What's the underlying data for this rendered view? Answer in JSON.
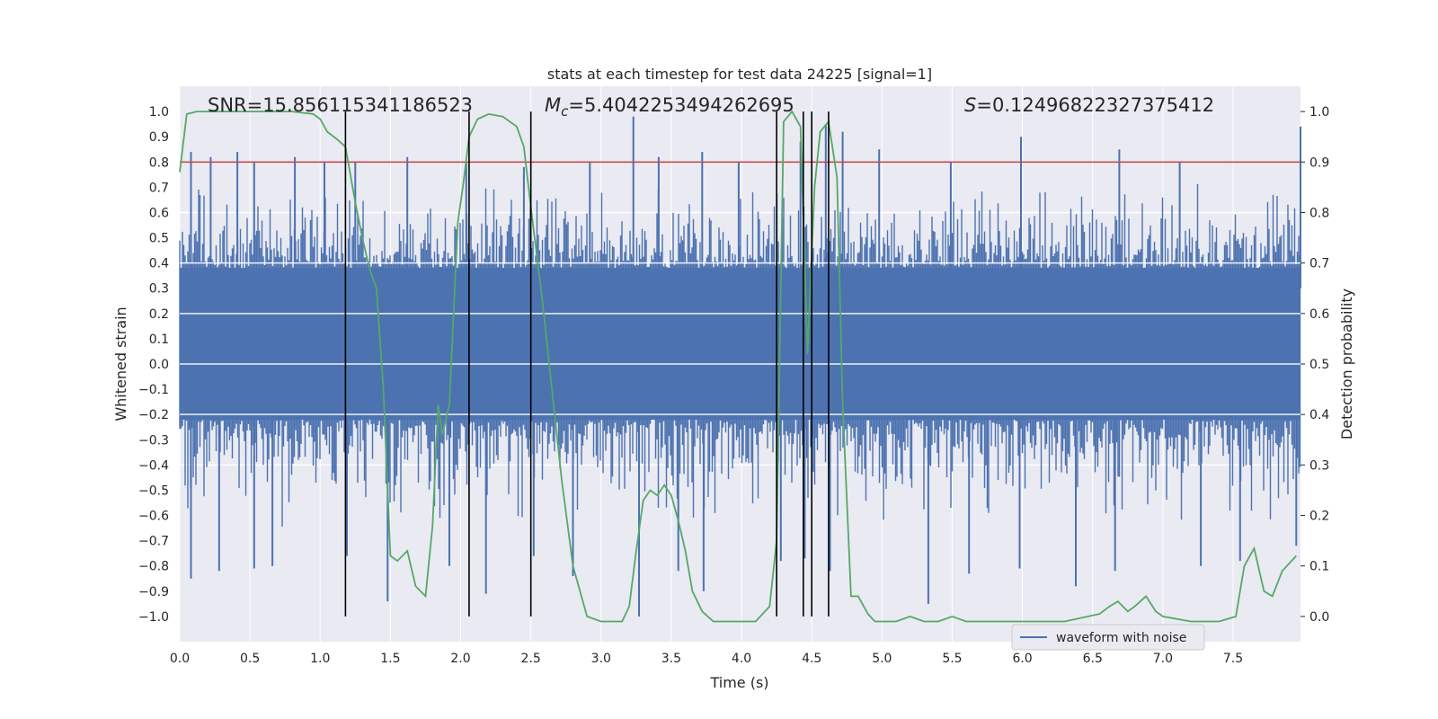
{
  "chart_data": {
    "type": "line",
    "title": "stats at each timestep for test data 24225 [signal=1]",
    "xlabel": "Time (s)",
    "ylabel": "Whitened strain",
    "y2label": "Detection probability",
    "xlim": [
      0.0,
      7.98
    ],
    "ylim": [
      -1.1,
      1.1
    ],
    "y2lim": [
      -0.05,
      1.05
    ],
    "x_ticks": [
      "0.0",
      "0.5",
      "1.0",
      "1.5",
      "2.0",
      "2.5",
      "3.0",
      "3.5",
      "4.0",
      "4.5",
      "5.0",
      "5.5",
      "6.0",
      "6.5",
      "7.0",
      "7.5"
    ],
    "y_ticks": [
      "1.0",
      "0.9",
      "0.8",
      "0.7",
      "0.6",
      "0.5",
      "0.4",
      "0.3",
      "0.2",
      "0.1",
      "0.0",
      "−0.1",
      "−0.2",
      "−0.3",
      "−0.4",
      "−0.5",
      "−0.6",
      "−0.7",
      "−0.8",
      "−0.9",
      "−1.0"
    ],
    "y2_ticks": [
      "1.0",
      "0.9",
      "0.8",
      "0.7",
      "0.6",
      "0.5",
      "0.4",
      "0.3",
      "0.2",
      "0.1",
      "0.0"
    ],
    "annotations": {
      "snr": "SNR=15.856115341186523",
      "mc_prefix": "M",
      "mc_sub": "c",
      "mc_value": "=5.4042253494262695",
      "s_prefix": "S",
      "s_value": "=0.12496822327375412"
    },
    "legend": {
      "label": "waveform with noise",
      "location": "lower-right"
    },
    "threshold": {
      "y2": 0.9,
      "color": "#c44e52"
    },
    "vertical_lines_x": [
      1.18,
      2.06,
      2.5,
      4.25,
      4.44,
      4.5,
      4.62
    ],
    "colors": {
      "waveform": "#4c72b0",
      "probability": "#55a868",
      "axes_bg": "#eaeaf2",
      "grid": "#ffffff",
      "vlines": "#000000"
    },
    "series": [
      {
        "name": "waveform with noise",
        "axis": "left",
        "band_low": -0.22,
        "band_high": 0.38,
        "peaks": [
          [
            0.08,
            0.84
          ],
          [
            0.22,
            0.82
          ],
          [
            0.41,
            0.84
          ],
          [
            0.53,
            0.8
          ],
          [
            0.82,
            0.82
          ],
          [
            1.03,
            0.8
          ],
          [
            1.25,
            0.8
          ],
          [
            1.62,
            0.82
          ],
          [
            2.04,
            0.8
          ],
          [
            2.45,
            0.78
          ],
          [
            2.92,
            0.8
          ],
          [
            3.23,
            0.98
          ],
          [
            3.41,
            0.82
          ],
          [
            3.72,
            0.84
          ],
          [
            3.98,
            0.8
          ],
          [
            4.42,
            0.88
          ],
          [
            4.6,
            0.95
          ],
          [
            4.72,
            0.92
          ],
          [
            4.98,
            0.85
          ],
          [
            5.49,
            0.8
          ],
          [
            5.99,
            0.9
          ],
          [
            6.69,
            0.85
          ],
          [
            7.12,
            0.8
          ],
          [
            7.98,
            0.94
          ]
        ],
        "troughs": [
          [
            0.08,
            -0.85
          ],
          [
            0.28,
            -0.82
          ],
          [
            0.53,
            -0.81
          ],
          [
            0.66,
            -0.8
          ],
          [
            1.19,
            -0.76
          ],
          [
            1.48,
            -0.94
          ],
          [
            1.92,
            -0.8
          ],
          [
            2.18,
            -0.91
          ],
          [
            2.52,
            -0.76
          ],
          [
            2.8,
            -0.84
          ],
          [
            3.27,
            -1.0
          ],
          [
            3.55,
            -0.82
          ],
          [
            3.73,
            -0.9
          ],
          [
            4.28,
            -0.78
          ],
          [
            4.45,
            -0.77
          ],
          [
            4.63,
            -0.82
          ],
          [
            5.33,
            -0.95
          ],
          [
            5.62,
            -0.83
          ],
          [
            5.98,
            -0.81
          ],
          [
            6.38,
            -0.88
          ],
          [
            6.66,
            -0.82
          ],
          [
            7.27,
            -0.8
          ],
          [
            7.55,
            -0.78
          ],
          [
            7.95,
            -0.72
          ]
        ]
      },
      {
        "name": "Detection probability",
        "axis": "right",
        "x": [
          0.0,
          0.05,
          0.12,
          0.2,
          0.4,
          0.6,
          0.8,
          0.95,
          1.0,
          1.05,
          1.12,
          1.18,
          1.25,
          1.3,
          1.35,
          1.4,
          1.45,
          1.5,
          1.55,
          1.62,
          1.68,
          1.75,
          1.8,
          1.84,
          1.87,
          1.92,
          1.98,
          2.02,
          2.06,
          2.12,
          2.2,
          2.3,
          2.4,
          2.45,
          2.5,
          2.58,
          2.65,
          2.72,
          2.8,
          2.9,
          3.0,
          3.1,
          3.15,
          3.2,
          3.25,
          3.3,
          3.35,
          3.4,
          3.45,
          3.5,
          3.55,
          3.6,
          3.65,
          3.72,
          3.8,
          3.9,
          4.0,
          4.1,
          4.2,
          4.25,
          4.3,
          4.36,
          4.42,
          4.47,
          4.52,
          4.56,
          4.62,
          4.68,
          4.72,
          4.78,
          4.83,
          4.9,
          4.95,
          5.0,
          5.1,
          5.2,
          5.3,
          5.4,
          5.5,
          5.6,
          5.8,
          6.0,
          6.3,
          6.55,
          6.62,
          6.68,
          6.75,
          6.8,
          6.88,
          6.95,
          7.0,
          7.2,
          7.4,
          7.52,
          7.58,
          7.65,
          7.72,
          7.78,
          7.85,
          7.95
        ],
        "y": [
          0.88,
          0.995,
          1.0,
          1.0,
          1.0,
          1.0,
          1.0,
          0.995,
          0.985,
          0.96,
          0.945,
          0.93,
          0.82,
          0.75,
          0.69,
          0.65,
          0.45,
          0.12,
          0.11,
          0.13,
          0.06,
          0.04,
          0.18,
          0.42,
          0.36,
          0.42,
          0.78,
          0.86,
          0.95,
          0.985,
          0.995,
          0.99,
          0.97,
          0.93,
          0.81,
          0.63,
          0.45,
          0.27,
          0.1,
          0.0,
          -0.01,
          -0.01,
          -0.01,
          0.02,
          0.13,
          0.23,
          0.25,
          0.24,
          0.26,
          0.24,
          0.19,
          0.13,
          0.05,
          0.01,
          -0.01,
          -0.01,
          -0.01,
          -0.01,
          0.02,
          0.15,
          0.98,
          1.0,
          0.97,
          0.52,
          0.85,
          0.96,
          0.98,
          0.87,
          0.42,
          0.04,
          0.04,
          0.005,
          -0.01,
          -0.01,
          -0.01,
          0.0,
          -0.01,
          -0.01,
          0.0,
          -0.01,
          -0.01,
          -0.01,
          -0.01,
          0.005,
          0.02,
          0.03,
          0.01,
          0.02,
          0.04,
          0.01,
          0.0,
          -0.01,
          -0.01,
          0.0,
          0.1,
          0.135,
          0.05,
          0.04,
          0.09,
          0.12
        ]
      }
    ]
  }
}
